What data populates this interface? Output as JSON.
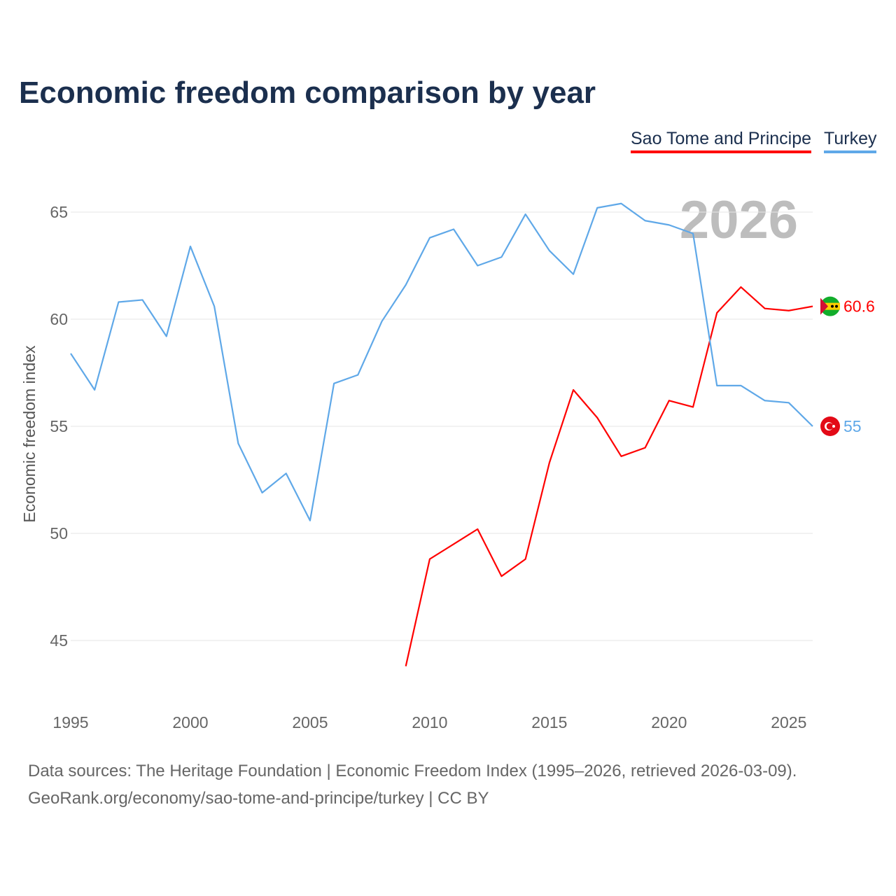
{
  "title": "Economic freedom comparison by year",
  "legend": [
    "Sao Tome and Principe",
    "Turkey"
  ],
  "year_watermark": "2026",
  "footer": {
    "line1": "Data sources: The Heritage Foundation | Economic Freedom Index (1995–2026, retrieved 2026-03-09).",
    "line2": "GeoRank.org/economy/sao-tome-and-principe/turkey | CC BY"
  },
  "chart_data": {
    "type": "line",
    "title": "Economic freedom comparison by year",
    "xlabel": "",
    "ylabel": "Economic freedom index",
    "xlim": [
      1995,
      2026
    ],
    "ylim": [
      43.8,
      66
    ],
    "xticks": [
      1995,
      2000,
      2005,
      2010,
      2015,
      2020,
      2025
    ],
    "yticks": [
      45,
      50,
      55,
      60,
      65
    ],
    "grid": true,
    "legend_position": "top-right",
    "series": [
      {
        "name": "Sao Tome and Principe",
        "color": "#ff0000",
        "end_label": "60.6",
        "x": [
          2009,
          2010,
          2011,
          2012,
          2013,
          2014,
          2015,
          2016,
          2017,
          2018,
          2019,
          2020,
          2021,
          2022,
          2023,
          2024,
          2025,
          2026
        ],
        "values": [
          43.8,
          48.8,
          49.5,
          50.2,
          48.0,
          48.8,
          53.3,
          56.7,
          55.4,
          53.6,
          54.0,
          56.2,
          55.9,
          60.3,
          61.5,
          60.5,
          60.4,
          60.6
        ]
      },
      {
        "name": "Turkey",
        "color": "#5fa8e8",
        "end_label": "55",
        "x": [
          1995,
          1996,
          1997,
          1998,
          1999,
          2000,
          2001,
          2002,
          2003,
          2004,
          2005,
          2006,
          2007,
          2008,
          2009,
          2010,
          2011,
          2012,
          2013,
          2014,
          2015,
          2016,
          2017,
          2018,
          2019,
          2020,
          2021,
          2022,
          2023,
          2024,
          2025,
          2026
        ],
        "values": [
          58.4,
          56.7,
          60.8,
          60.9,
          59.2,
          63.4,
          60.6,
          54.2,
          51.9,
          52.8,
          50.6,
          57.0,
          57.4,
          59.9,
          61.6,
          63.8,
          64.2,
          62.5,
          62.9,
          64.9,
          63.2,
          62.1,
          65.2,
          65.4,
          64.6,
          64.4,
          64.0,
          56.9,
          56.9,
          56.2,
          56.1,
          55.0
        ]
      }
    ]
  }
}
